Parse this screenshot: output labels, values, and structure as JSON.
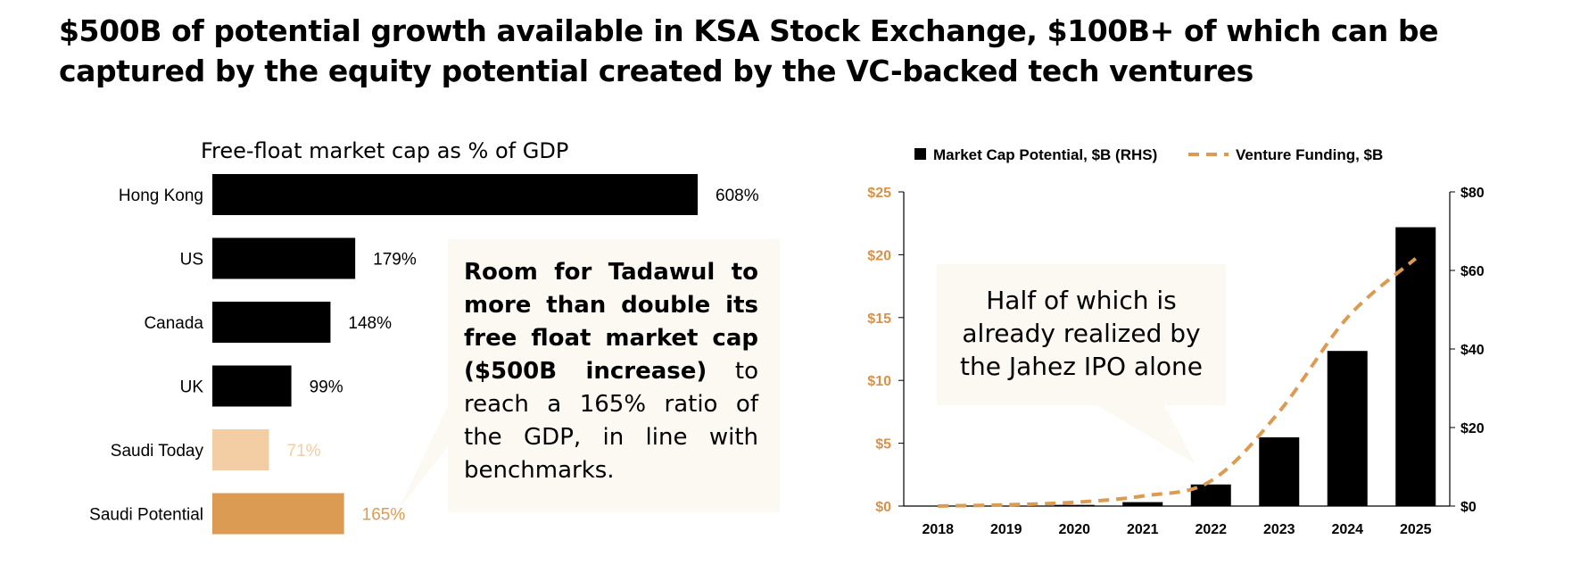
{
  "title": "$500B of potential growth available in KSA Stock Exchange, $100B+ of which can be captured by the equity potential created by the VC-backed tech ventures",
  "colors": {
    "black": "#000000",
    "light_orange": "#f3cda3",
    "orange": "#dc9b53",
    "axis_orange": "#d9914a",
    "callout_bg": "#fbf9f1"
  },
  "callout_left": {
    "bold": "Room for Tadawul to more than double its free float market cap ($500B increase)",
    "rest": " to reach a 165% ratio of the GDP, in line with benchmarks."
  },
  "callout_right": {
    "text": "Half of which is already realized by the Jahez IPO alone"
  },
  "chart_data": [
    {
      "type": "bar",
      "orientation": "horizontal",
      "title": "Free-float market cap  as % of GDP",
      "categories": [
        "Hong Kong",
        "US",
        "Canada",
        "UK",
        "Saudi Today",
        "Saudi Potential"
      ],
      "values": [
        608,
        179,
        148,
        99,
        71,
        165
      ],
      "value_labels": [
        "608%",
        "179%",
        "148%",
        "99%",
        "71%",
        "165%"
      ],
      "bar_colors": [
        "#000000",
        "#000000",
        "#000000",
        "#000000",
        "#f3cda3",
        "#dc9b53"
      ],
      "label_colors": [
        "#000000",
        "#000000",
        "#000000",
        "#000000",
        "#f3cda3",
        "#dc9b53"
      ],
      "xlim": [
        0,
        608
      ]
    },
    {
      "type": "bar+line",
      "legend": [
        "Market Cap Potential, $B (RHS)",
        "Venture Funding, $B"
      ],
      "legend_position": "top",
      "categories": [
        "2018",
        "2019",
        "2020",
        "2021",
        "2022",
        "2023",
        "2024",
        "2025"
      ],
      "series": [
        {
          "name": "Market Cap Potential, $B (RHS)",
          "type": "bar",
          "axis": "right",
          "values": [
            0,
            0,
            0.3,
            1,
            5.5,
            17.5,
            39.5,
            71
          ]
        },
        {
          "name": "Venture Funding, $B",
          "type": "line",
          "style": "dashed",
          "axis": "left",
          "values": [
            0,
            0.1,
            0.3,
            0.8,
            2,
            7.5,
            15,
            19.7
          ]
        }
      ],
      "y_left": {
        "lim": [
          0,
          25
        ],
        "ticks": [
          "$0",
          "$5",
          "$10",
          "$15",
          "$20",
          "$25"
        ],
        "tick_values": [
          0,
          5,
          10,
          15,
          20,
          25
        ]
      },
      "y_right": {
        "lim": [
          0,
          80
        ],
        "ticks": [
          "$0",
          "$20",
          "$40",
          "$60",
          "$80"
        ],
        "tick_values": [
          0,
          20,
          40,
          60,
          80
        ]
      }
    }
  ]
}
